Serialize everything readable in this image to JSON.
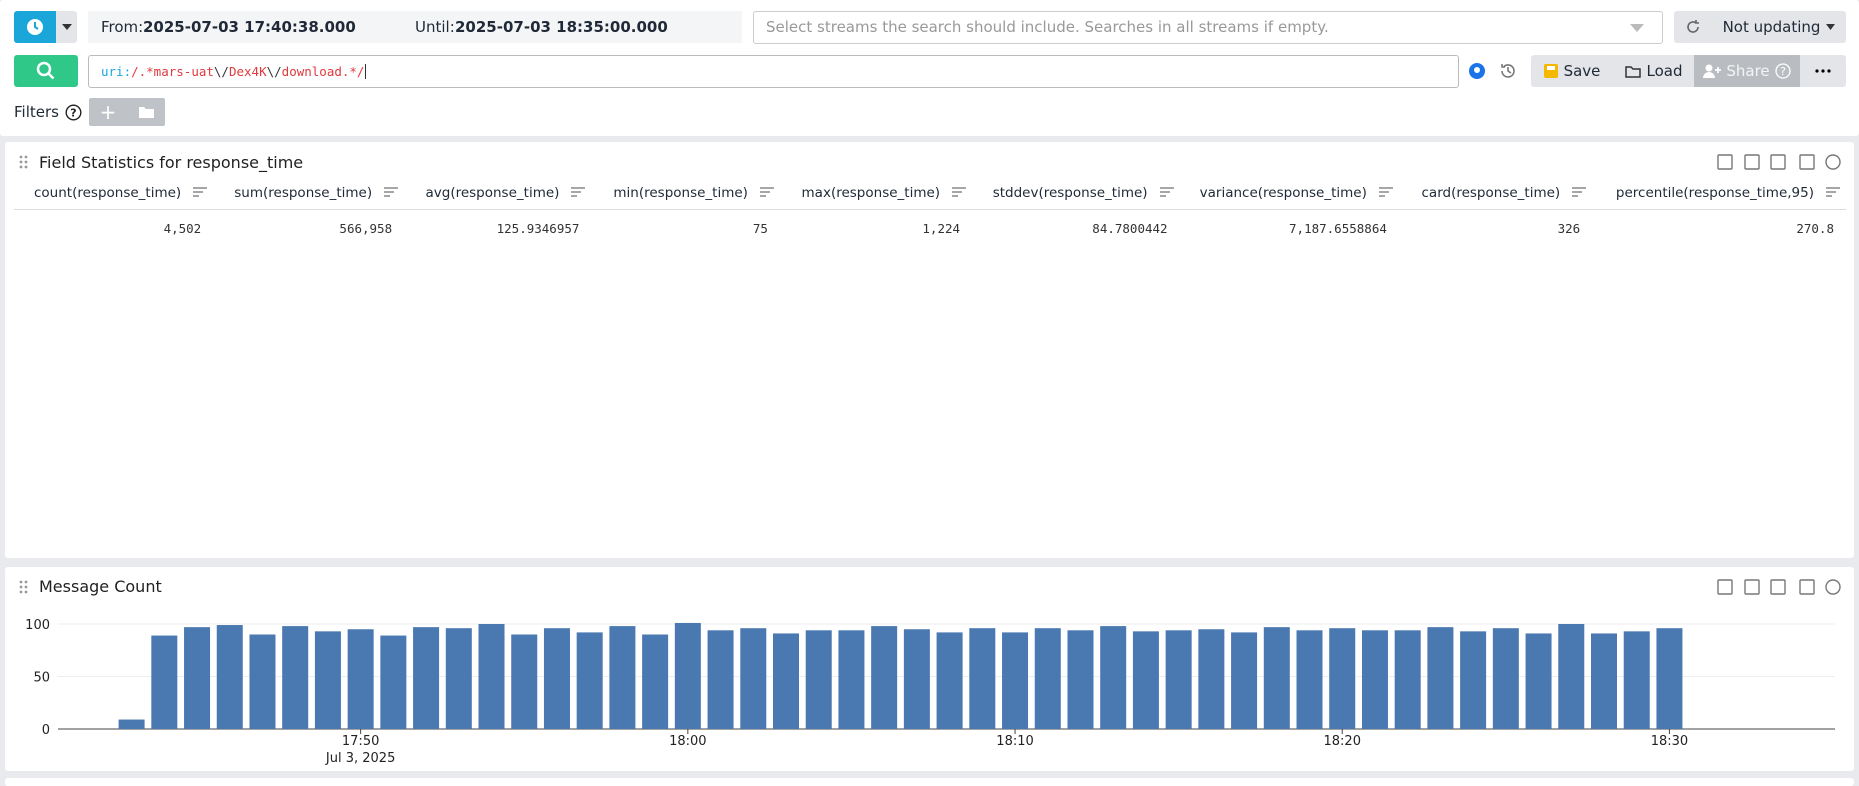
{
  "time_range": {
    "from_label": "From:",
    "from": "2025-07-03 17:40:38.000",
    "until_label": "Until:",
    "until": "2025-07-03 18:35:00.000"
  },
  "streams_placeholder": "Select streams the search should include. Searches in all streams if empty.",
  "refresh": "Not updating",
  "query_tokens": [
    {
      "text": "uri:",
      "color": "#1aa6d9"
    },
    {
      "text": "/.*mars-uat",
      "color": "#e0393e"
    },
    {
      "text": "\\/",
      "color": "#333333"
    },
    {
      "text": "Dex4K",
      "color": "#e0393e"
    },
    {
      "text": "\\/",
      "color": "#333333"
    },
    {
      "text": "download.*/",
      "color": "#e0393e"
    }
  ],
  "buttons": {
    "save": "Save",
    "load": "Load",
    "share": "Share"
  },
  "filters_label": "Filters",
  "table": {
    "title": "Field Statistics for response_time",
    "columns": [
      "count(response_time)",
      "sum(response_time)",
      "avg(response_time)",
      "min(response_time)",
      "max(response_time)",
      "stddev(response_time)",
      "variance(response_time)",
      "card(response_time)",
      "percentile(response_time,95)"
    ],
    "rows": [
      [
        "4,502",
        "566,958",
        "125.9346957",
        "75",
        "1,224",
        "84.7800442",
        "7,187.6558864",
        "326",
        "270.8"
      ]
    ]
  },
  "chart_data": {
    "type": "bar",
    "title": "Message Count",
    "color": "#4a78b0",
    "x": [
      "17:43",
      "17:44",
      "17:45",
      "17:46",
      "17:47",
      "17:48",
      "17:49",
      "17:50",
      "17:51",
      "17:52",
      "17:53",
      "17:54",
      "17:55",
      "17:56",
      "17:57",
      "17:58",
      "17:59",
      "18:00",
      "18:01",
      "18:02",
      "18:03",
      "18:04",
      "18:05",
      "18:06",
      "18:07",
      "18:08",
      "18:09",
      "18:10",
      "18:11",
      "18:12",
      "18:13",
      "18:14",
      "18:15",
      "18:16",
      "18:17",
      "18:18",
      "18:19",
      "18:20",
      "18:21",
      "18:22",
      "18:23",
      "18:24",
      "18:25",
      "18:26",
      "18:27",
      "18:28",
      "18:29",
      "18:30"
    ],
    "values": [
      9,
      89,
      97,
      99,
      90,
      98,
      93,
      95,
      89,
      97,
      96,
      100,
      90,
      96,
      92,
      98,
      90,
      101,
      94,
      96,
      91,
      94,
      94,
      98,
      95,
      92,
      96,
      92,
      96,
      94,
      98,
      93,
      94,
      95,
      92,
      97,
      94,
      96,
      94,
      94,
      97,
      93,
      96,
      91,
      100,
      91,
      93,
      96
    ],
    "ylim": [
      0,
      100
    ],
    "yticks": [
      0,
      50,
      100
    ],
    "xticks": [
      "17:50",
      "18:00",
      "18:10",
      "18:20",
      "18:30"
    ],
    "x_sublabel": "Jul 3, 2025",
    "grid": true
  }
}
